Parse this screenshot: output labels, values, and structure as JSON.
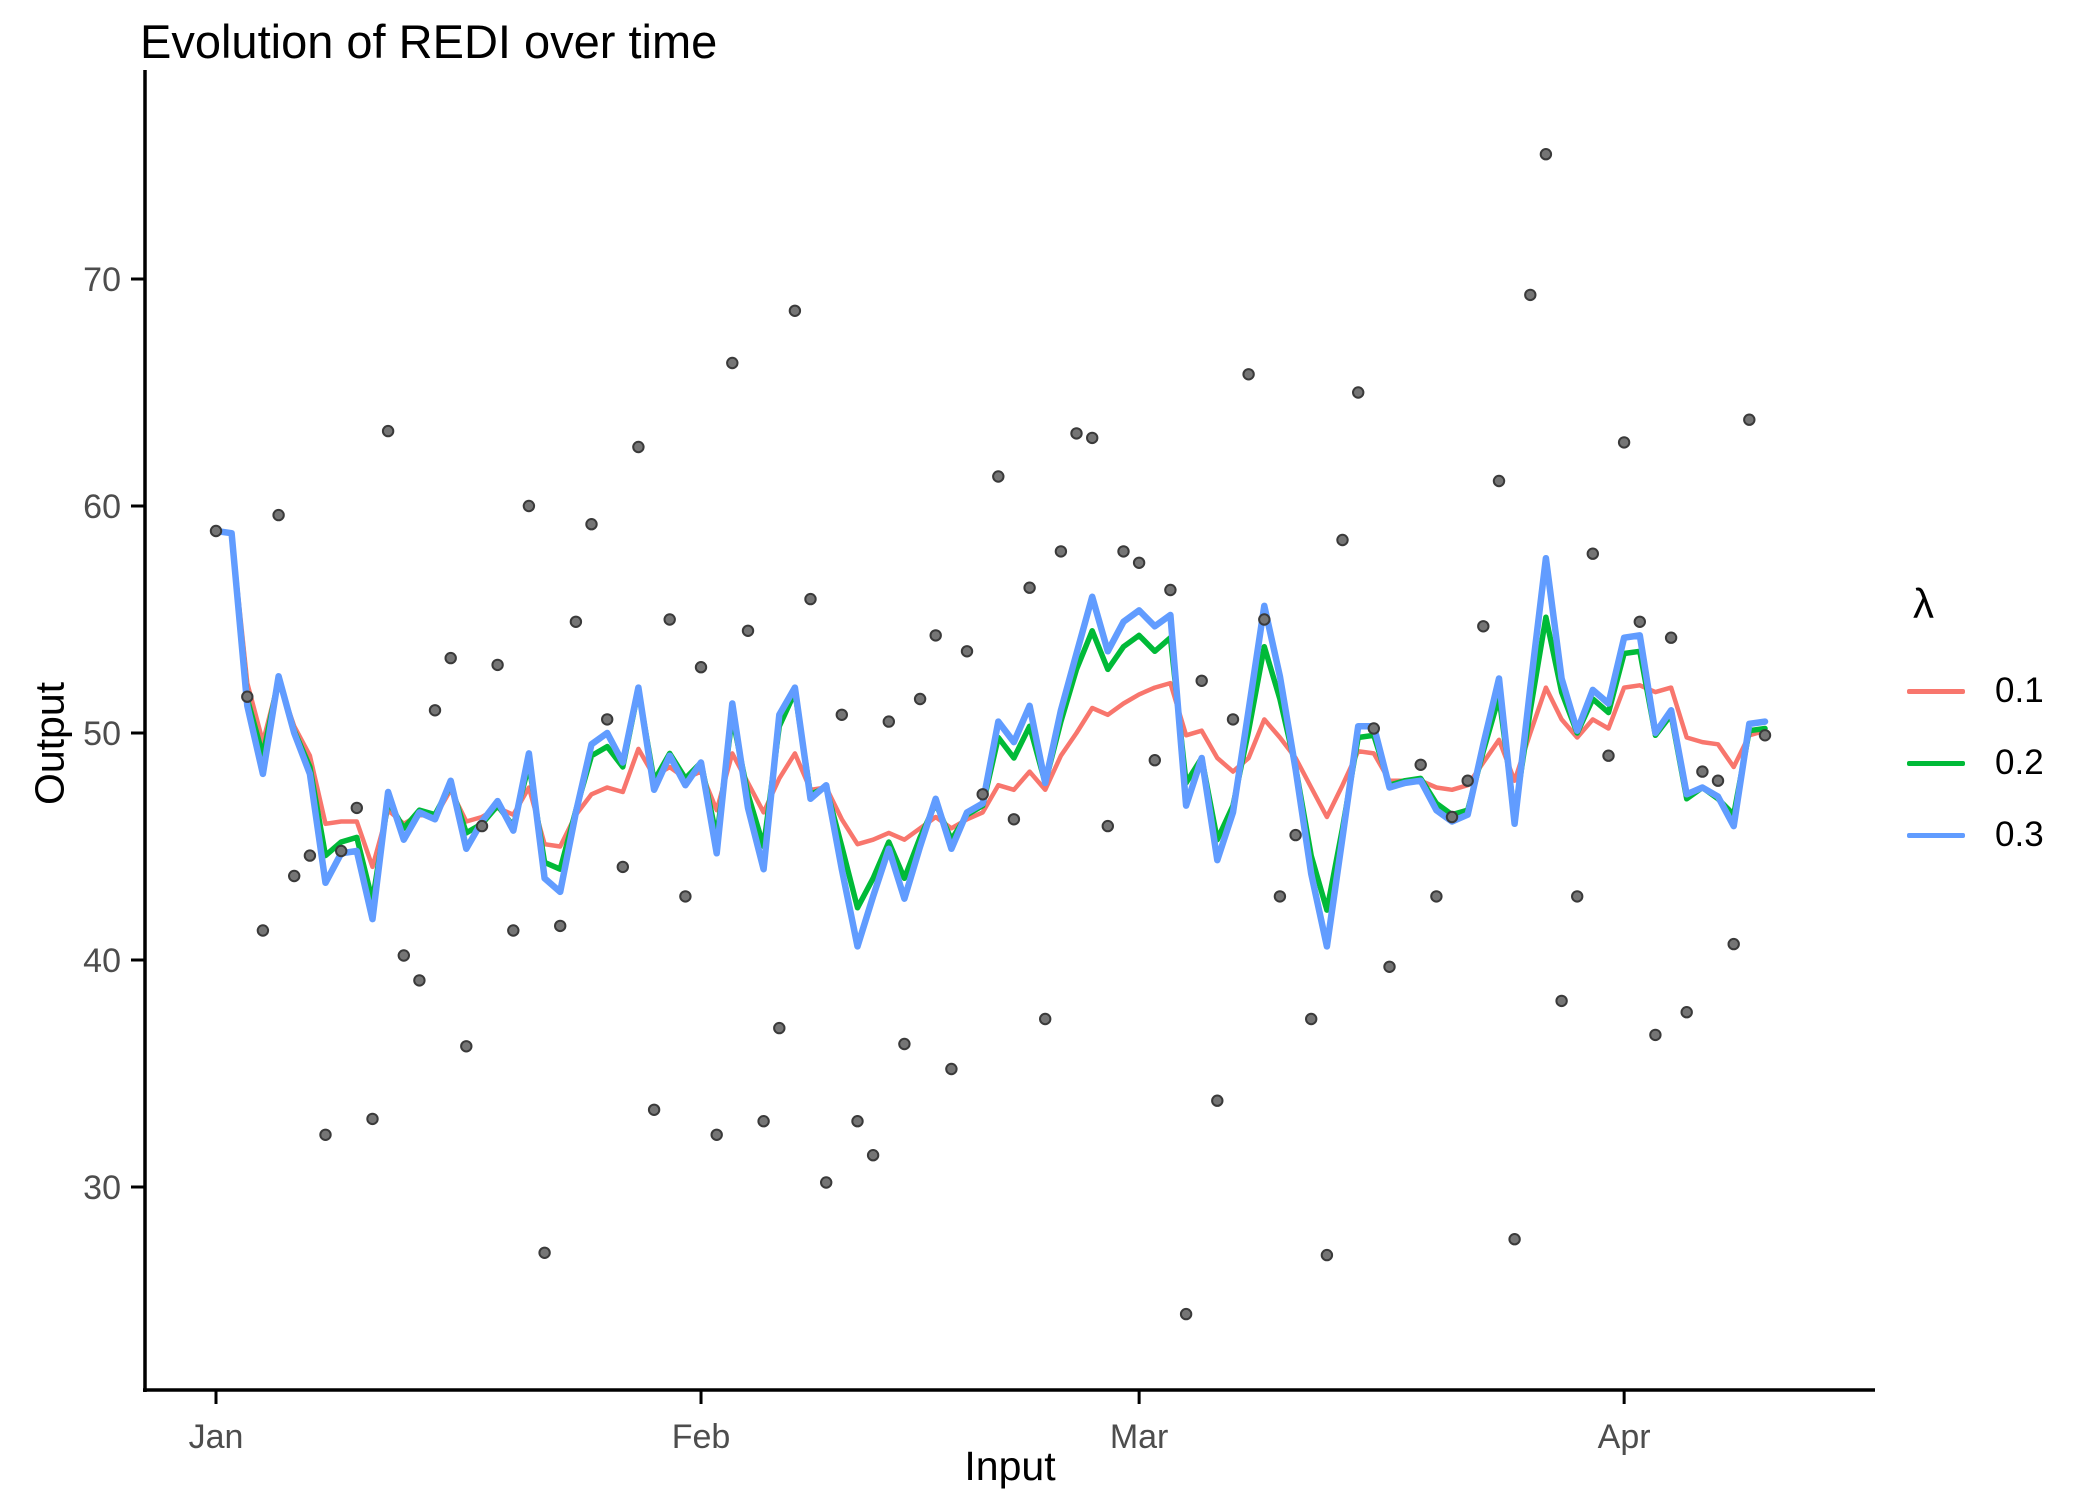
{
  "title": "Evolution of REDI over time",
  "chart_data": {
    "type": "line",
    "title": "Evolution of REDI over time",
    "xlabel": "Input",
    "ylabel": "Output",
    "x_tick_labels": [
      "Jan",
      "Feb",
      "Mar",
      "Apr"
    ],
    "x_tick_days": [
      0,
      31,
      59,
      90
    ],
    "y_ticks": [
      30,
      40,
      50,
      60,
      70
    ],
    "ylim": [
      21,
      78
    ],
    "x_range_days": [
      0,
      99
    ],
    "grid": "off",
    "legend_position": "right",
    "legend_title": "λ",
    "point_color": "#757575",
    "point_stroke": "#3a3a3a",
    "scatter": {
      "name": "daily-observations",
      "values": [
        58.9,
        null,
        51.6,
        41.3,
        59.6,
        43.7,
        44.6,
        32.3,
        44.8,
        46.7,
        33.0,
        63.3,
        40.2,
        39.1,
        51.0,
        53.3,
        36.2,
        45.9,
        53.0,
        41.3,
        60.0,
        27.1,
        41.5,
        54.9,
        59.2,
        50.6,
        44.1,
        62.6,
        33.4,
        55.0,
        42.8,
        52.9,
        32.3,
        66.3,
        54.5,
        32.9,
        37.0,
        68.6,
        55.9,
        30.2,
        50.8,
        32.9,
        31.4,
        50.5,
        36.3,
        51.5,
        54.3,
        35.2,
        53.6,
        47.3,
        61.3,
        46.2,
        56.4,
        37.4,
        58.0,
        63.2,
        63.0,
        45.9,
        58.0,
        57.5,
        48.8,
        56.3,
        24.4,
        52.3,
        33.8,
        50.6,
        65.8,
        55.0,
        42.8,
        45.5,
        37.4,
        27.0,
        58.5,
        65.0,
        50.2,
        39.7,
        null,
        48.6,
        42.8,
        46.3,
        47.9,
        54.7,
        61.1,
        27.7,
        69.3,
        75.5,
        38.2,
        42.8,
        57.9,
        49.0,
        62.8,
        54.9,
        36.7,
        54.2,
        37.7,
        48.3,
        47.9,
        40.7,
        63.8,
        49.9
      ]
    },
    "series": [
      {
        "name": "0.1",
        "color": "#F8766D",
        "values": [
          58.9,
          58.8,
          52.2,
          49.6,
          52.3,
          50.3,
          49.0,
          46.0,
          46.1,
          46.1,
          44.1,
          46.6,
          46.0,
          46.4,
          46.3,
          47.5,
          46.1,
          46.3,
          46.7,
          46.4,
          47.6,
          45.1,
          45.0,
          46.4,
          47.3,
          47.6,
          47.4,
          49.3,
          48.1,
          48.5,
          48.0,
          48.3,
          46.6,
          49.1,
          47.8,
          46.5,
          48.0,
          49.1,
          47.5,
          47.6,
          46.2,
          45.1,
          45.3,
          45.6,
          45.3,
          45.8,
          46.3,
          45.8,
          46.2,
          46.5,
          47.7,
          47.5,
          48.3,
          47.5,
          49.0,
          50.0,
          51.1,
          50.8,
          51.3,
          51.7,
          52.0,
          52.2,
          49.9,
          50.1,
          48.9,
          48.3,
          48.9,
          50.6,
          49.8,
          48.9,
          47.6,
          46.3,
          47.7,
          49.2,
          49.1,
          47.9,
          47.9,
          47.9,
          47.6,
          47.5,
          47.7,
          48.7,
          49.7,
          47.9,
          50.0,
          52.0,
          50.6,
          49.8,
          50.6,
          50.2,
          52.0,
          52.1,
          51.8,
          52.0,
          49.8,
          49.6,
          49.5,
          48.5,
          49.9,
          50.1
        ]
      },
      {
        "name": "0.2",
        "color": "#00BA38",
        "values": [
          58.9,
          58.8,
          51.5,
          49.0,
          52.4,
          50.1,
          48.5,
          44.6,
          45.2,
          45.4,
          42.6,
          47.0,
          45.8,
          46.6,
          46.4,
          47.7,
          45.6,
          46.0,
          46.8,
          45.9,
          48.6,
          44.3,
          44.0,
          46.6,
          49.0,
          49.4,
          48.5,
          51.9,
          47.9,
          49.1,
          48.0,
          48.7,
          45.4,
          50.7,
          47.3,
          45.0,
          50.3,
          51.8,
          47.3,
          47.6,
          45.0,
          42.3,
          43.6,
          45.2,
          43.6,
          45.4,
          46.9,
          45.3,
          46.4,
          46.8,
          49.8,
          48.9,
          50.3,
          47.8,
          50.5,
          52.8,
          54.5,
          52.8,
          53.8,
          54.3,
          53.6,
          54.2,
          47.8,
          48.9,
          45.3,
          46.8,
          50.1,
          53.8,
          51.5,
          48.5,
          44.6,
          42.2,
          45.8,
          49.8,
          49.9,
          47.7,
          47.9,
          48.0,
          46.9,
          46.4,
          46.6,
          49.2,
          51.6,
          46.4,
          51.0,
          55.1,
          51.8,
          50.0,
          51.5,
          50.9,
          53.5,
          53.6,
          49.9,
          50.8,
          47.1,
          47.6,
          47.1,
          46.4,
          50.1,
          50.2
        ]
      },
      {
        "name": "0.3",
        "color": "#619CFF",
        "values": [
          58.9,
          58.8,
          51.2,
          48.2,
          52.5,
          50.0,
          48.2,
          43.4,
          44.7,
          44.8,
          41.8,
          47.4,
          45.3,
          46.5,
          46.2,
          47.9,
          44.9,
          46.1,
          47.0,
          45.7,
          49.1,
          43.6,
          43.0,
          46.5,
          49.5,
          50.0,
          48.7,
          52.0,
          47.5,
          49.0,
          47.7,
          48.7,
          44.7,
          51.3,
          46.7,
          44.0,
          50.8,
          52.0,
          47.1,
          47.7,
          44.0,
          40.6,
          42.8,
          44.9,
          42.7,
          45.0,
          47.1,
          44.9,
          46.5,
          46.9,
          50.5,
          49.6,
          51.2,
          47.8,
          51.0,
          53.5,
          56.0,
          53.6,
          54.9,
          55.4,
          54.7,
          55.2,
          46.8,
          48.9,
          44.4,
          46.5,
          51.0,
          55.6,
          52.5,
          48.4,
          43.8,
          40.6,
          45.4,
          50.3,
          50.3,
          47.6,
          47.8,
          47.9,
          46.6,
          46.1,
          46.4,
          49.5,
          52.4,
          46.0,
          52.0,
          57.7,
          52.4,
          50.1,
          51.9,
          51.3,
          54.2,
          54.3,
          50.0,
          51.0,
          47.3,
          47.6,
          47.2,
          45.9,
          50.4,
          50.5
        ]
      }
    ]
  }
}
